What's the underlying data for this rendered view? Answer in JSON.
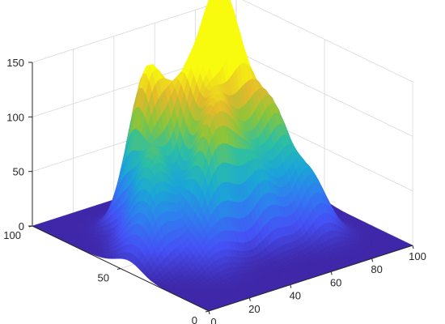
{
  "chart_data": {
    "type": "surface",
    "title": "",
    "xlabel": "",
    "ylabel": "",
    "zlabel": "",
    "xlim": [
      0,
      100
    ],
    "ylim": [
      0,
      100
    ],
    "zlim": [
      0,
      150
    ],
    "x_ticks": [
      "0",
      "20",
      "40",
      "60",
      "80",
      "100"
    ],
    "y_ticks": [
      "0",
      "50",
      "100"
    ],
    "z_ticks": [
      "0",
      "50",
      "100",
      "150"
    ],
    "grid": true,
    "colormap": "parula",
    "colormap_stops": [
      "#3e26a8",
      "#4450f5",
      "#2f7cf0",
      "#1aa7d6",
      "#2ebfa1",
      "#8ac53a",
      "#e3b92b",
      "#f9fb0e"
    ],
    "peaks": [
      {
        "x": 30,
        "y": 70,
        "height": 140
      },
      {
        "x": 20,
        "y": 55,
        "height": 80
      },
      {
        "x": 42,
        "y": 60,
        "height": 110
      },
      {
        "x": 55,
        "y": 62,
        "height": 130
      },
      {
        "x": 60,
        "y": 55,
        "height": 115
      },
      {
        "x": 45,
        "y": 45,
        "height": 90
      },
      {
        "x": 70,
        "y": 45,
        "height": 95
      },
      {
        "x": 35,
        "y": 40,
        "height": 85
      },
      {
        "x": 55,
        "y": 35,
        "height": 60
      },
      {
        "x": 75,
        "y": 30,
        "height": 55
      },
      {
        "x": 12,
        "y": 45,
        "height": 45
      },
      {
        "x": 85,
        "y": 55,
        "height": 35
      },
      {
        "x": 25,
        "y": 30,
        "height": 20
      }
    ]
  }
}
